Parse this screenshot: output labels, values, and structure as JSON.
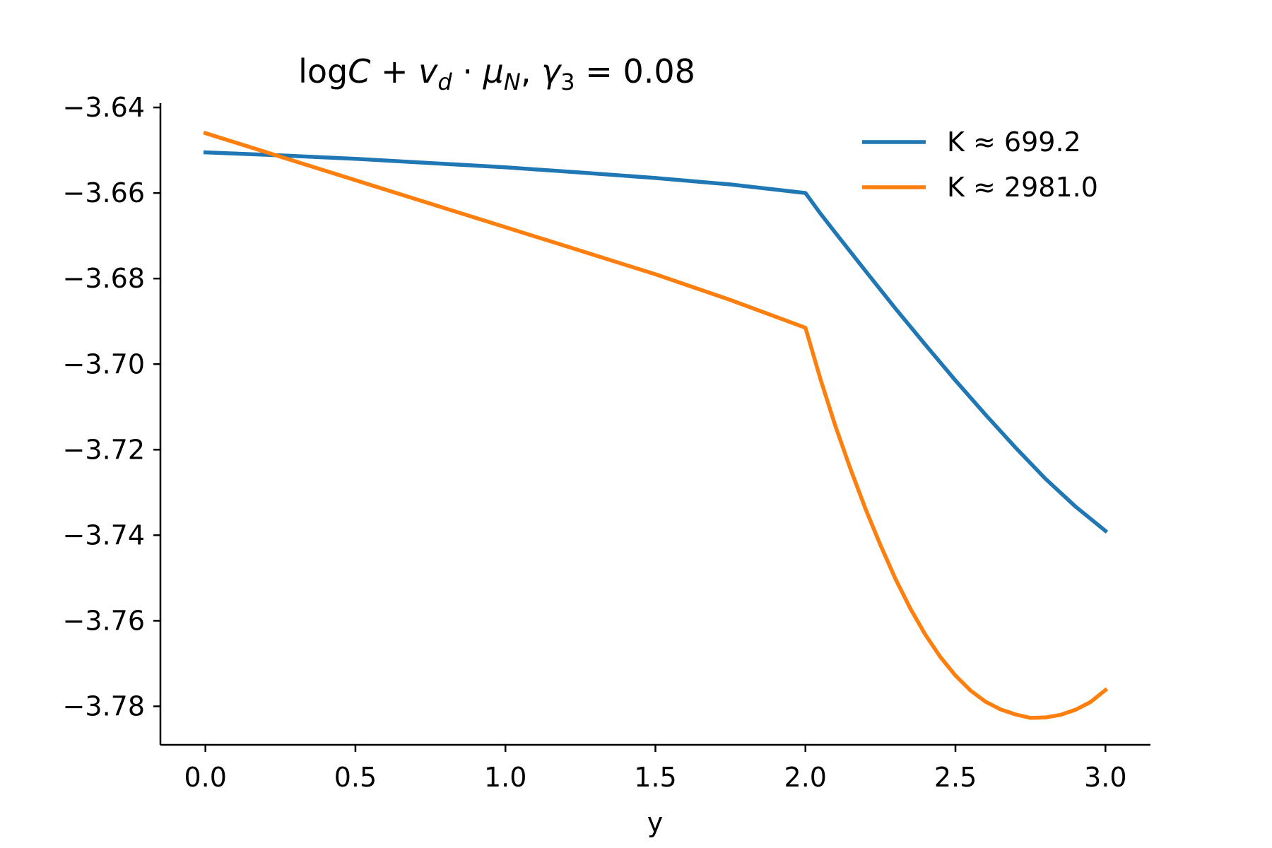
{
  "chart_data": {
    "type": "line",
    "title": {
      "log": "log",
      "C": "C",
      "plus": " + ",
      "v": "v",
      "v_sub": "d",
      "dot": " · ",
      "mu": "μ",
      "mu_sub": "N",
      "sep": ",   ",
      "gamma": "γ",
      "gamma_sub": "3",
      "eq": " = 0.08"
    },
    "xlabel": "y",
    "ylabel": "",
    "xlim": [
      -0.15,
      3.15
    ],
    "ylim": [
      -3.789,
      -3.639
    ],
    "xticks": [
      {
        "value": 0.0,
        "label": "0.0"
      },
      {
        "value": 0.5,
        "label": "0.5"
      },
      {
        "value": 1.0,
        "label": "1.0"
      },
      {
        "value": 1.5,
        "label": "1.5"
      },
      {
        "value": 2.0,
        "label": "2.0"
      },
      {
        "value": 2.5,
        "label": "2.5"
      },
      {
        "value": 3.0,
        "label": "3.0"
      }
    ],
    "yticks": [
      {
        "value": -3.64,
        "label": "−3.64"
      },
      {
        "value": -3.66,
        "label": "−3.66"
      },
      {
        "value": -3.68,
        "label": "−3.68"
      },
      {
        "value": -3.7,
        "label": "−3.70"
      },
      {
        "value": -3.72,
        "label": "−3.72"
      },
      {
        "value": -3.74,
        "label": "−3.74"
      },
      {
        "value": -3.76,
        "label": "−3.76"
      },
      {
        "value": -3.78,
        "label": "−3.78"
      }
    ],
    "grid": false,
    "legend_position": "top-right",
    "series": [
      {
        "name": "K ≈ 699.2",
        "color": "#1f77b4",
        "x": [
          0.0,
          0.25,
          0.5,
          0.75,
          1.0,
          1.25,
          1.5,
          1.75,
          2.0,
          2.05,
          2.1,
          2.2,
          2.3,
          2.4,
          2.5,
          2.6,
          2.7,
          2.8,
          2.9,
          3.0
        ],
        "y": [
          -3.6505,
          -3.6512,
          -3.652,
          -3.653,
          -3.654,
          -3.6552,
          -3.6565,
          -3.658,
          -3.66,
          -3.6648,
          -3.6693,
          -3.6782,
          -3.687,
          -3.6955,
          -3.7038,
          -3.7118,
          -3.7195,
          -3.7268,
          -3.7333,
          -3.739
        ]
      },
      {
        "name": "K ≈ 2981.0",
        "color": "#ff7f0e",
        "x": [
          0.0,
          0.25,
          0.5,
          0.75,
          1.0,
          1.25,
          1.5,
          1.75,
          2.0,
          2.05,
          2.1,
          2.15,
          2.2,
          2.25,
          2.3,
          2.35,
          2.4,
          2.45,
          2.5,
          2.55,
          2.6,
          2.65,
          2.7,
          2.75,
          2.8,
          2.85,
          2.9,
          2.95,
          3.0
        ],
        "y": [
          -3.646,
          -3.6515,
          -3.657,
          -3.6625,
          -3.668,
          -3.6735,
          -3.679,
          -3.685,
          -3.6915,
          -3.7035,
          -3.7145,
          -3.7245,
          -3.7338,
          -3.7423,
          -3.7502,
          -3.7572,
          -3.7633,
          -3.7685,
          -3.7728,
          -3.7763,
          -3.7789,
          -3.7807,
          -3.7819,
          -3.7827,
          -3.7826,
          -3.782,
          -3.7808,
          -3.779,
          -3.7762
        ]
      }
    ]
  }
}
